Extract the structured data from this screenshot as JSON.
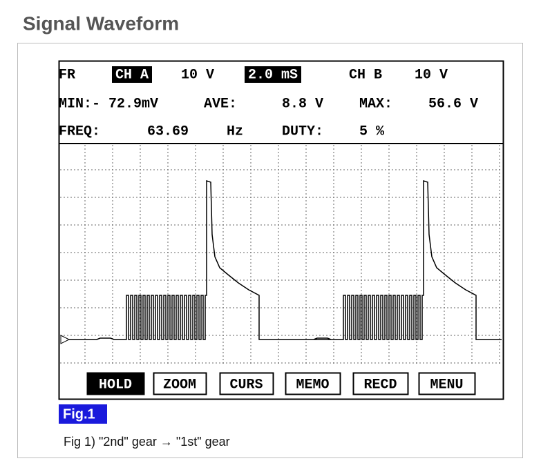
{
  "title": "Signal Waveform",
  "screen": {
    "header": [
      "FR",
      "CH A",
      "10 V",
      "2.0 mS",
      "CH B",
      "10 V"
    ],
    "readings": [
      "MIN:- 72.9mV",
      "AVE:",
      "8.8 V",
      "MAX:",
      "56.6 V"
    ],
    "frequency": [
      "FREQ:",
      "63.69",
      "Hz",
      "DUTY:",
      "5 %"
    ],
    "buttons": [
      "HOLD",
      "ZOOM",
      "CURS",
      "MEMO",
      "RECD",
      "MENU"
    ]
  },
  "figure_label": "Fig.1",
  "caption": "Fig 1) \"2nd\" gear → \"1st\" gear"
}
